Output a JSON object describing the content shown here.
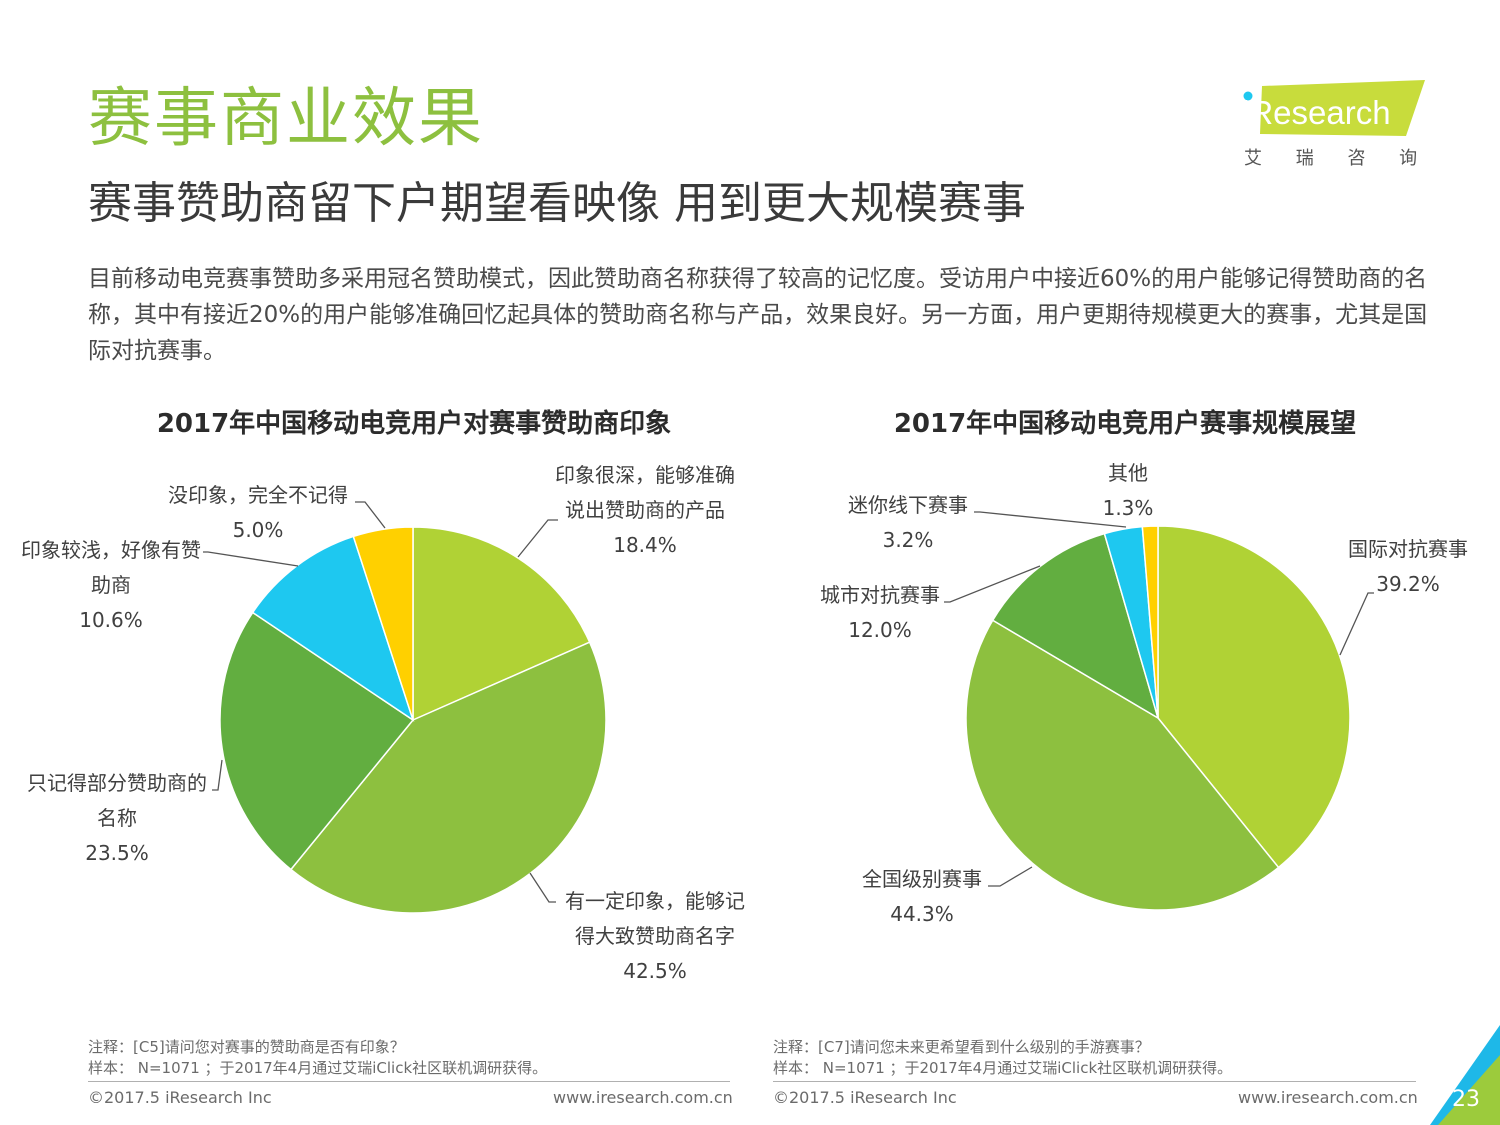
{
  "header": {
    "title": "赛事商业效果",
    "subtitle": "赛事赞助商留下户期望看映像 用到更大规模赛事",
    "intro": "目前移动电竞赛事赞助多采用冠名赞助模式，因此赞助商名称获得了较高的记忆度。受访用户中接近60%的用户能够记得赞助商的名称，其中有接近20%的用户能够准确回忆起具体的赞助商名称与产品，效果良好。另一方面，用户更期待规模更大的赛事，尤其是国际对抗赛事。"
  },
  "logo": {
    "brand": "iResearch",
    "tagline": "艾 瑞 咨 询"
  },
  "colors": {
    "title": "#8dc03f",
    "yellow_green": "#b0d235",
    "light_green": "#8dc03f",
    "dark_green": "#62ae40",
    "cyan": "#1ec8f0",
    "yellow": "#ffd000",
    "teal_corner": "#1eb8e8"
  },
  "chart_data": [
    {
      "type": "pie",
      "title": "2017年中国移动电竞用户对赛事赞助商印象",
      "slices": [
        {
          "label_lines": [
            "印象很深，能够准确",
            "说出赞助商的产品"
          ],
          "value": 18.4,
          "value_label": "18.4%",
          "color": "#b0d235"
        },
        {
          "label_lines": [
            "有一定印象，能够记",
            "得大致赞助商名字"
          ],
          "value": 42.5,
          "value_label": "42.5%",
          "color": "#8dc03f"
        },
        {
          "label_lines": [
            "只记得部分赞助商的",
            "名称"
          ],
          "value": 23.5,
          "value_label": "23.5%",
          "color": "#62ae40"
        },
        {
          "label_lines": [
            "印象较浅，好像有赞",
            "助商"
          ],
          "value": 10.6,
          "value_label": "10.6%",
          "color": "#1ec8f0"
        },
        {
          "label_lines": [
            "没印象，完全不记得"
          ],
          "value": 5.0,
          "value_label": "5.0%",
          "color": "#ffd000"
        }
      ]
    },
    {
      "type": "pie",
      "title": "2017年中国移动电竞用户赛事规模展望",
      "slices": [
        {
          "label_lines": [
            "国际对抗赛事"
          ],
          "value": 39.2,
          "value_label": "39.2%",
          "color": "#b0d235"
        },
        {
          "label_lines": [
            "全国级别赛事"
          ],
          "value": 44.3,
          "value_label": "44.3%",
          "color": "#8dc03f"
        },
        {
          "label_lines": [
            "城市对抗赛事"
          ],
          "value": 12.0,
          "value_label": "12.0%",
          "color": "#62ae40"
        },
        {
          "label_lines": [
            "迷你线下赛事"
          ],
          "value": 3.2,
          "value_label": "3.2%",
          "color": "#1ec8f0"
        },
        {
          "label_lines": [
            "其他"
          ],
          "value": 1.3,
          "value_label": "1.3%",
          "color": "#ffd000"
        }
      ]
    }
  ],
  "notes": {
    "left": {
      "note": "注释：[C5]请问您对赛事的赞助商是否有印象？",
      "sample": "样本： N=1071 ；于2017年4月通过艾瑞iClick社区联机调研获得。"
    },
    "right": {
      "note": "注释：[C7]请问您未来更希望看到什么级别的手游赛事？",
      "sample": "样本： N=1071 ；于2017年4月通过艾瑞iClick社区联机调研获得。"
    }
  },
  "footer": {
    "copyright": "©2017.5 iResearch Inc",
    "url": "www.iresearch.com.cn",
    "page": "23"
  }
}
